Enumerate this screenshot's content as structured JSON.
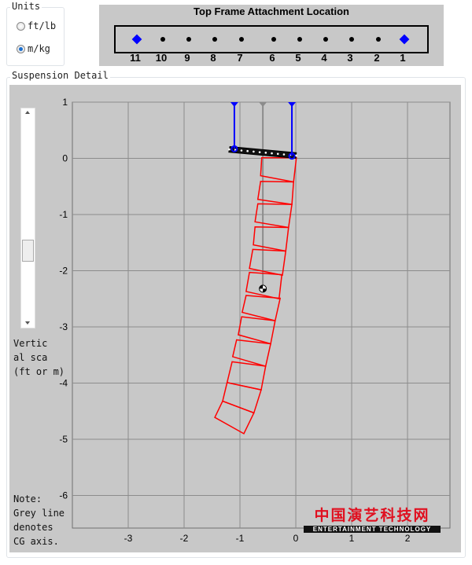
{
  "units": {
    "legend": "Units",
    "options": [
      {
        "label": "ft/lb",
        "selected": false
      },
      {
        "label": "m/kg",
        "selected": true
      }
    ]
  },
  "top_frame": {
    "title": "Top Frame Attachment Location",
    "points": [
      {
        "label": "11",
        "selected": true
      },
      {
        "label": "10",
        "selected": false
      },
      {
        "label": "9",
        "selected": false
      },
      {
        "label": "8",
        "selected": false
      },
      {
        "label": "7",
        "selected": false
      },
      {
        "label": "6",
        "selected": false
      },
      {
        "label": "5",
        "selected": false
      },
      {
        "label": "4",
        "selected": false
      },
      {
        "label": "3",
        "selected": false
      },
      {
        "label": "2",
        "selected": false
      },
      {
        "label": "1",
        "selected": true
      }
    ]
  },
  "suspension": {
    "legend": "Suspension Detail",
    "scale_label": "Vertic\nal sca\n(ft or m)",
    "note": "Note:\nGrey line\ndenotes\nCG axis."
  },
  "watermark": {
    "cn": "中国演艺科技网",
    "en": "ENTERTAINMENT TECHNOLOGY"
  },
  "colors": {
    "cabinet": "#ff0000",
    "pickup": "#0000ff",
    "cg_axis": "#8c8c8c",
    "plot_bg": "#c8c8c8",
    "grid": "#8c8c8c"
  },
  "chart_data": {
    "type": "line",
    "xlim": [
      -4,
      2.76
    ],
    "ylim": [
      -6.58,
      1
    ],
    "xticks": [
      "-3",
      "-2",
      "-1",
      "0",
      "1",
      "2"
    ],
    "yticks": [
      "1",
      "0",
      "-1",
      "-2",
      "-3",
      "-4",
      "-5",
      "-6"
    ],
    "grid": true,
    "frame": [
      [
        -1.18,
        0.21
      ],
      [
        0.01,
        0.1
      ],
      [
        0.0,
        0.0
      ],
      [
        -1.2,
        0.11
      ]
    ],
    "pickups": [
      {
        "x": -1.1,
        "y_attach": 0.17
      },
      {
        "x": -0.07,
        "y_attach": 0.04
      }
    ],
    "cg": {
      "x": -0.59,
      "y": -2.32
    },
    "cabinets": [
      [
        [
          -0.61,
          0.01
        ],
        [
          0.01,
          0.01
        ],
        [
          -0.04,
          -0.42
        ],
        [
          -0.63,
          -0.31
        ]
      ],
      [
        [
          -0.63,
          -0.41
        ],
        [
          -0.04,
          -0.42
        ],
        [
          -0.07,
          -0.82
        ],
        [
          -0.68,
          -0.73
        ]
      ],
      [
        [
          -0.68,
          -0.81
        ],
        [
          -0.07,
          -0.82
        ],
        [
          -0.13,
          -1.23
        ],
        [
          -0.73,
          -1.13
        ]
      ],
      [
        [
          -0.73,
          -1.22
        ],
        [
          -0.13,
          -1.23
        ],
        [
          -0.18,
          -1.65
        ],
        [
          -0.76,
          -1.54
        ]
      ],
      [
        [
          -0.77,
          -1.62
        ],
        [
          -0.18,
          -1.65
        ],
        [
          -0.24,
          -2.08
        ],
        [
          -0.83,
          -1.96
        ]
      ],
      [
        [
          -0.83,
          -2.03
        ],
        [
          -0.25,
          -2.07
        ],
        [
          -0.3,
          -2.5
        ],
        [
          -0.89,
          -2.37
        ]
      ],
      [
        [
          -0.89,
          -2.44
        ],
        [
          -0.28,
          -2.49
        ],
        [
          -0.37,
          -2.89
        ],
        [
          -0.96,
          -2.74
        ]
      ],
      [
        [
          -0.97,
          -2.82
        ],
        [
          -0.37,
          -2.89
        ],
        [
          -0.45,
          -3.3
        ],
        [
          -1.03,
          -3.14
        ]
      ],
      [
        [
          -1.06,
          -3.23
        ],
        [
          -0.45,
          -3.3
        ],
        [
          -0.54,
          -3.7
        ],
        [
          -1.13,
          -3.53
        ]
      ],
      [
        [
          -1.14,
          -3.62
        ],
        [
          -0.54,
          -3.7
        ],
        [
          -0.62,
          -4.12
        ],
        [
          -1.23,
          -3.99
        ]
      ],
      [
        [
          -1.23,
          -3.99
        ],
        [
          -0.62,
          -4.12
        ],
        [
          -0.75,
          -4.53
        ],
        [
          -1.31,
          -4.32
        ]
      ],
      [
        [
          -1.31,
          -4.32
        ],
        [
          -0.75,
          -4.53
        ],
        [
          -0.93,
          -4.9
        ],
        [
          -1.45,
          -4.61
        ]
      ]
    ]
  }
}
